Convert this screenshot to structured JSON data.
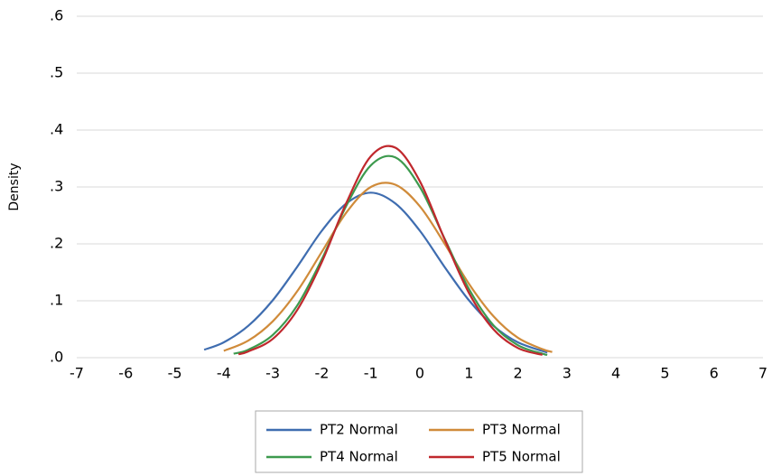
{
  "chart_data": {
    "type": "line",
    "y_label": "Density",
    "xlim": [
      -7,
      7
    ],
    "xticks": [
      -7,
      -6,
      -5,
      -4,
      -3,
      -2,
      -1,
      0,
      1,
      2,
      3,
      4,
      5,
      6,
      7
    ],
    "ylim": [
      0,
      0.6
    ],
    "yticks": [
      {
        "value": 0,
        "label": ".0"
      },
      {
        "value": 0.1,
        "label": ".1"
      },
      {
        "value": 0.2,
        "label": ".2"
      },
      {
        "value": 0.3,
        "label": ".3"
      },
      {
        "value": 0.4,
        "label": ".4"
      },
      {
        "value": 0.5,
        "label": ".5"
      },
      {
        "value": 0.6,
        "label": ".6"
      }
    ],
    "grid": true,
    "legend": "bottom",
    "series": [
      {
        "name": "PT2 Normal",
        "color": "#3f6db0",
        "x": [
          -4.4,
          -4,
          -3.5,
          -3,
          -2.5,
          -2,
          -1.5,
          -1,
          -0.5,
          0,
          0.5,
          1,
          1.5,
          2,
          2.6
        ],
        "values": [
          0.014,
          0.027,
          0.056,
          0.101,
          0.16,
          0.223,
          0.271,
          0.29,
          0.271,
          0.223,
          0.16,
          0.101,
          0.056,
          0.027,
          0.009
        ]
      },
      {
        "name": "PT3 Normal",
        "color": "#d08b3a",
        "x": [
          -4,
          -3.5,
          -3,
          -2.5,
          -2,
          -1.5,
          -1,
          -0.5,
          0,
          0.5,
          1,
          1.5,
          2,
          2.5,
          2.7
        ],
        "values": [
          0.012,
          0.03,
          0.064,
          0.117,
          0.186,
          0.255,
          0.3,
          0.304,
          0.266,
          0.201,
          0.13,
          0.073,
          0.035,
          0.015,
          0.01
        ]
      },
      {
        "name": "PT4 Normal",
        "color": "#3d9a4e",
        "x": [
          -3.8,
          -3.5,
          -3,
          -2.5,
          -2,
          -1.5,
          -1,
          -0.5,
          0,
          0.5,
          1,
          1.5,
          2,
          2.5,
          2.6
        ],
        "values": [
          0.007,
          0.014,
          0.04,
          0.092,
          0.173,
          0.267,
          0.338,
          0.352,
          0.3,
          0.21,
          0.121,
          0.057,
          0.022,
          0.007,
          0.005
        ]
      },
      {
        "name": "PT5 Normal",
        "color": "#c0282d",
        "x": [
          -3.7,
          -3.5,
          -3,
          -2.5,
          -2,
          -1.5,
          -1,
          -0.5,
          0,
          0.5,
          1,
          1.5,
          2,
          2.5
        ],
        "values": [
          0.006,
          0.011,
          0.033,
          0.084,
          0.168,
          0.272,
          0.354,
          0.369,
          0.31,
          0.209,
          0.114,
          0.05,
          0.017,
          0.005
        ]
      }
    ]
  }
}
